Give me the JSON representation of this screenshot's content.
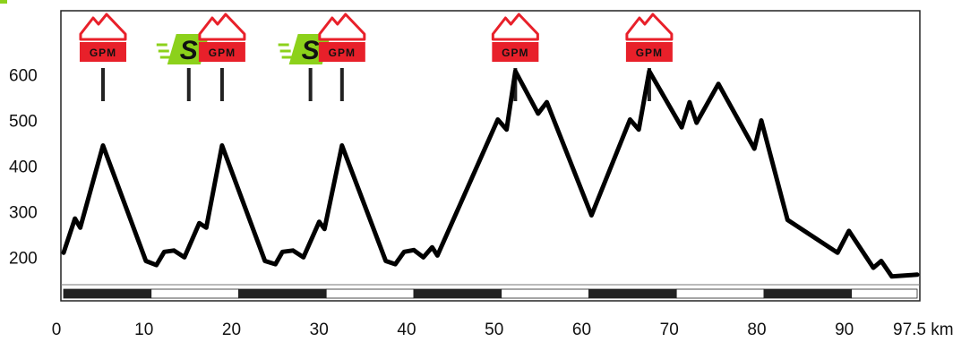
{
  "chart_data": {
    "type": "line",
    "title": "",
    "xlabel": "",
    "ylabel": "",
    "x_unit": "km",
    "xlim": [
      0,
      97.5
    ],
    "ylim": [
      140,
      760
    ],
    "x_ticks": [
      0,
      10,
      20,
      30,
      40,
      50,
      60,
      70,
      80,
      90,
      97.5
    ],
    "x_tick_labels": [
      "0",
      "10",
      "20",
      "30",
      "40",
      "50",
      "60",
      "70",
      "80",
      "90",
      "97.5 km"
    ],
    "y_ticks": [
      200,
      300,
      400,
      500,
      600
    ],
    "y_tick_labels": [
      "200",
      "300",
      "400",
      "500",
      "600"
    ],
    "grid": false,
    "colors": {
      "line": "#000000",
      "gpm": "#e8202a",
      "sprint": "#8cd11b",
      "scale_dark": "#222222"
    },
    "series": [
      {
        "name": "",
        "points": [
          [
            0,
            210
          ],
          [
            1.3,
            285
          ],
          [
            1.9,
            265
          ],
          [
            4.5,
            445
          ],
          [
            9.4,
            192
          ],
          [
            10.6,
            183
          ],
          [
            11.5,
            212
          ],
          [
            12.6,
            215
          ],
          [
            13.8,
            200
          ],
          [
            15.5,
            275
          ],
          [
            16.3,
            265
          ],
          [
            18.1,
            445
          ],
          [
            23.0,
            192
          ],
          [
            24.2,
            185
          ],
          [
            25.0,
            212
          ],
          [
            26.2,
            215
          ],
          [
            27.4,
            200
          ],
          [
            29.2,
            278
          ],
          [
            29.8,
            262
          ],
          [
            31.8,
            445
          ],
          [
            36.8,
            192
          ],
          [
            37.9,
            185
          ],
          [
            38.9,
            212
          ],
          [
            40.0,
            216
          ],
          [
            41.1,
            200
          ],
          [
            42.1,
            222
          ],
          [
            42.7,
            204
          ],
          [
            49.6,
            502
          ],
          [
            50.6,
            480
          ],
          [
            51.6,
            608
          ],
          [
            54.2,
            515
          ],
          [
            55.2,
            540
          ],
          [
            60.3,
            292
          ],
          [
            64.7,
            502
          ],
          [
            65.7,
            480
          ],
          [
            66.9,
            608
          ],
          [
            70.6,
            485
          ],
          [
            71.5,
            540
          ],
          [
            72.3,
            495
          ],
          [
            74.8,
            580
          ],
          [
            78.9,
            438
          ],
          [
            79.7,
            500
          ],
          [
            82.7,
            282
          ],
          [
            88.4,
            210
          ],
          [
            89.7,
            258
          ],
          [
            92.5,
            177
          ],
          [
            93.4,
            192
          ],
          [
            94.6,
            158
          ],
          [
            97.5,
            162
          ]
        ]
      }
    ],
    "markers": [
      {
        "type": "GPM",
        "label": "GPM",
        "km": 4.5
      },
      {
        "type": "sprint",
        "label": "S",
        "km": 14.3
      },
      {
        "type": "GPM",
        "label": "GPM",
        "km": 18.1
      },
      {
        "type": "sprint",
        "label": "S",
        "km": 28.2
      },
      {
        "type": "GPM",
        "label": "GPM",
        "km": 31.8
      },
      {
        "type": "GPM",
        "label": "GPM",
        "km": 51.6
      },
      {
        "type": "GPM",
        "label": "GPM",
        "km": 66.9
      }
    ],
    "distance_scale_segment_km": 10,
    "axis_break_icon": "green-corner-mark"
  }
}
